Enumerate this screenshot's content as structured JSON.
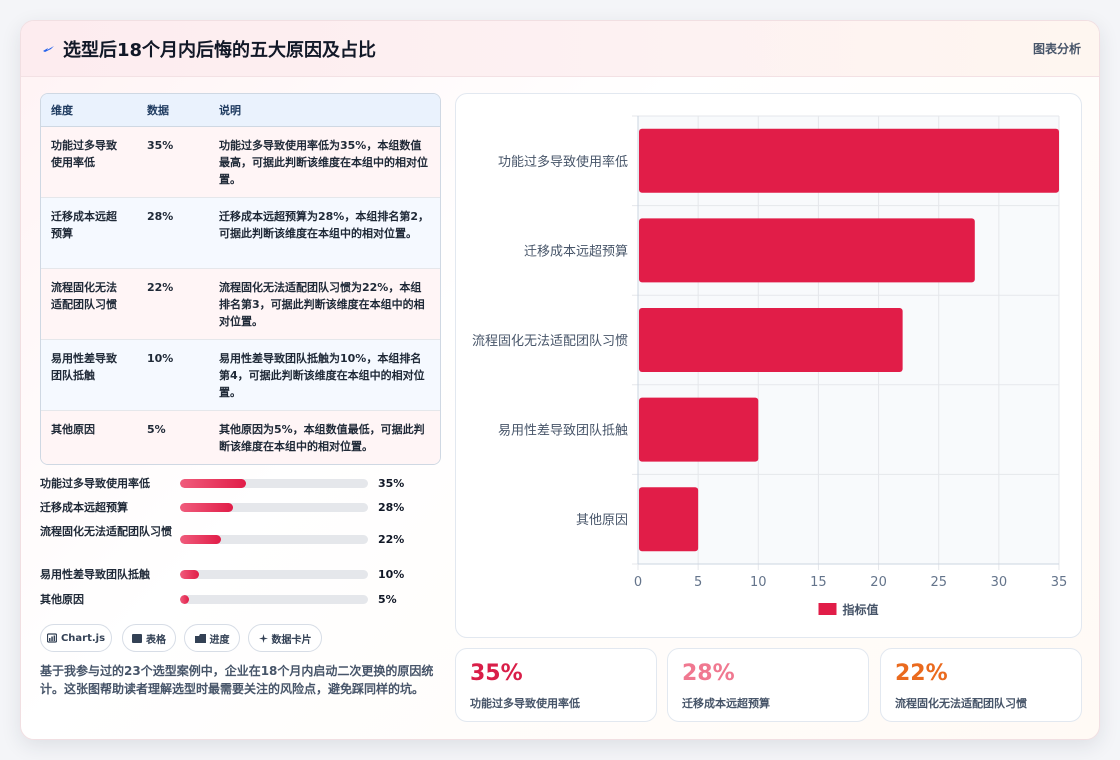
{
  "header": {
    "title": "选型后18个月内后悔的五大原因及占比",
    "link": "图表分析"
  },
  "table": {
    "columns": [
      "维度",
      "数据",
      "说明"
    ],
    "rows": [
      {
        "dim": "功能过多导致使用率低",
        "value": "35%",
        "note": "功能过多导致使用率低为35%，本组数值最高，可据此判断该维度在本组中的相对位置。"
      },
      {
        "dim": "迁移成本远超预算",
        "value": "28%",
        "note": "迁移成本远超预算为28%，本组排名第2，可据此判断该维度在本组中的相对位置。"
      },
      {
        "dim": "流程固化无法适配团队习惯",
        "value": "22%",
        "note": "流程固化无法适配团队习惯为22%，本组排名第3，可据此判断该维度在本组中的相对位置。"
      },
      {
        "dim": "易用性差导致团队抵触",
        "value": "10%",
        "note": "易用性差导致团队抵触为10%，本组排名第4，可据此判断该维度在本组中的相对位置。"
      },
      {
        "dim": "其他原因",
        "value": "5%",
        "note": "其他原因为5%，本组数值最低，可据此判断该维度在本组中的相对位置。"
      }
    ]
  },
  "progress": [
    {
      "label": "功能过多导致使用率低",
      "value": "35%",
      "fraction": 0.35
    },
    {
      "label": "迁移成本远超预算",
      "value": "28%",
      "fraction": 0.28
    },
    {
      "label": "流程固化无法适配团队习惯",
      "value": "22%",
      "fraction": 0.22
    },
    {
      "label": "易用性差导致团队抵触",
      "value": "10%",
      "fraction": 0.1
    },
    {
      "label": "其他原因",
      "value": "5%",
      "fraction": 0.05
    }
  ],
  "pills": [
    {
      "label": "Chart.js",
      "icon": "chart-icon"
    },
    {
      "label": "表格",
      "icon": "table-icon"
    },
    {
      "label": "进度",
      "icon": "progress-icon"
    },
    {
      "label": "数据卡片",
      "icon": "sparkle-icon"
    }
  ],
  "description": "基于我参与过的23个选型案例中，企业在18个月内启动二次更换的原因统计。这张图帮助读者理解选型时最需要关注的风险点，避免踩同样的坑。",
  "stats": [
    {
      "value": "35%",
      "label": "功能过多导致使用率低",
      "color": "#d91e48"
    },
    {
      "value": "28%",
      "label": "迁移成本远超预算",
      "color": "#f07890"
    },
    {
      "value": "22%",
      "label": "流程固化无法适配团队习惯",
      "color": "#ea6a1e"
    }
  ],
  "colors": {
    "accent": "#e11d48",
    "grid": "#e5e7eb"
  },
  "chart_data": {
    "type": "bar",
    "orientation": "horizontal",
    "categories": [
      "功能过多导致使用率低",
      "迁移成本远超预算",
      "流程固化无法适配团队习惯",
      "易用性差导致团队抵触",
      "其他原因"
    ],
    "series": [
      {
        "name": "指标值",
        "values": [
          35,
          28,
          22,
          10,
          5
        ],
        "color": "#e11d48"
      }
    ],
    "xlim": [
      0,
      35
    ],
    "xticks": [
      0,
      5,
      10,
      15,
      20,
      25,
      30,
      35
    ],
    "grid": true,
    "legend": "bottom"
  }
}
